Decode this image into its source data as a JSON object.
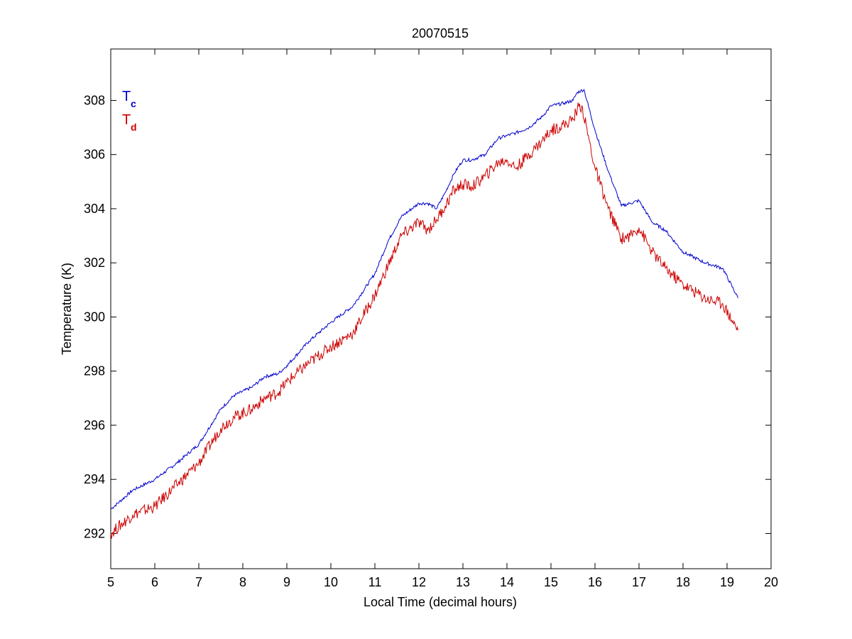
{
  "chart_data": {
    "type": "line",
    "title": "20070515",
    "xlabel": "Local Time (decimal hours)",
    "ylabel": "Temperature (K)",
    "xlim": [
      5,
      20
    ],
    "ylim": [
      290.7,
      309.9
    ],
    "xticks": [
      5,
      6,
      7,
      8,
      9,
      10,
      11,
      12,
      13,
      14,
      15,
      16,
      17,
      18,
      19,
      20
    ],
    "yticks": [
      292,
      294,
      296,
      298,
      300,
      302,
      304,
      306,
      308
    ],
    "grid": false,
    "legend_position": "top-left",
    "series": [
      {
        "name": "T",
        "subscript": "c",
        "color": "#0000cc",
        "x": [
          5.0,
          5.5,
          6.0,
          6.5,
          7.0,
          7.5,
          7.8,
          8.2,
          8.5,
          8.8,
          9.0,
          9.5,
          10.0,
          10.5,
          11.0,
          11.3,
          11.6,
          12.0,
          12.2,
          12.4,
          12.6,
          12.8,
          13.0,
          13.2,
          13.5,
          13.8,
          14.0,
          14.2,
          14.5,
          14.8,
          15.0,
          15.3,
          15.5,
          15.6,
          15.75,
          16.0,
          16.3,
          16.6,
          16.8,
          17.0,
          17.3,
          17.6,
          18.0,
          18.5,
          18.9,
          19.25
        ],
        "y": [
          292.9,
          293.6,
          294.0,
          294.6,
          295.3,
          296.6,
          297.1,
          297.4,
          297.8,
          297.9,
          298.2,
          299.1,
          299.8,
          300.4,
          301.6,
          302.8,
          303.7,
          304.2,
          304.2,
          304.0,
          304.6,
          305.3,
          305.8,
          305.8,
          306.0,
          306.6,
          306.7,
          306.8,
          307.0,
          307.4,
          307.8,
          307.9,
          308.0,
          308.3,
          308.4,
          306.9,
          305.4,
          304.1,
          304.2,
          304.3,
          303.5,
          303.2,
          302.4,
          302.0,
          301.8,
          300.7
        ]
      },
      {
        "name": "T",
        "subscript": "d",
        "color": "#cc0000",
        "x": [
          5.0,
          5.5,
          6.0,
          6.5,
          7.0,
          7.5,
          7.8,
          8.2,
          8.5,
          8.8,
          9.0,
          9.5,
          10.0,
          10.5,
          11.0,
          11.3,
          11.6,
          12.0,
          12.2,
          12.4,
          12.6,
          12.8,
          13.0,
          13.2,
          13.5,
          13.8,
          14.0,
          14.2,
          14.5,
          14.8,
          15.0,
          15.3,
          15.5,
          15.6,
          15.7,
          16.0,
          16.3,
          16.6,
          16.8,
          17.0,
          17.3,
          17.6,
          18.0,
          18.5,
          18.9,
          19.25
        ],
        "y": [
          292.0,
          292.7,
          293.0,
          293.8,
          294.6,
          295.9,
          296.3,
          296.6,
          297.0,
          297.2,
          297.6,
          298.3,
          298.9,
          299.4,
          300.8,
          301.9,
          303.0,
          303.5,
          303.2,
          303.6,
          304.1,
          304.7,
          304.9,
          304.8,
          305.2,
          305.7,
          305.8,
          305.5,
          306.0,
          306.5,
          306.9,
          307.1,
          307.3,
          307.7,
          307.8,
          305.5,
          304.0,
          302.9,
          303.0,
          303.3,
          302.4,
          301.8,
          301.2,
          300.7,
          300.5,
          299.5
        ]
      }
    ]
  }
}
